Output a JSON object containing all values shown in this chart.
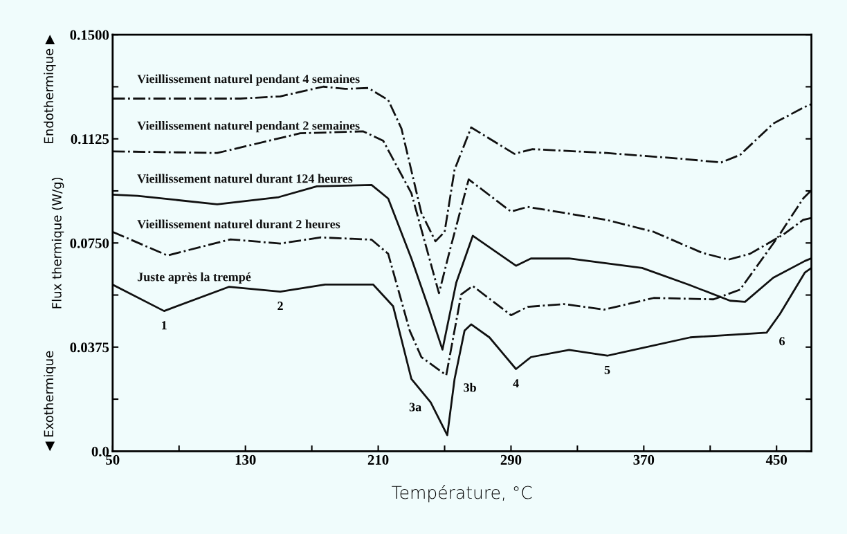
{
  "chart_data": {
    "type": "line",
    "xlabel": "Température, °C",
    "ylabel": "Flux thermique (W/g)",
    "xlim": [
      50,
      471
    ],
    "xticks": [
      50,
      {
        "value": 90,
        "label": null
      },
      130,
      {
        "value": 170,
        "label": null
      },
      210,
      {
        "value": 250,
        "label": null
      },
      290,
      {
        "value": 330,
        "label": null
      },
      370,
      {
        "value": 410,
        "label": null
      },
      450
    ],
    "ylim": [
      0.0,
      0.15
    ],
    "yticks": [
      {
        "value": 0.0,
        "label": "0.0"
      },
      {
        "value": 0.01875,
        "label": null
      },
      {
        "value": 0.0375,
        "label": "0.0375"
      },
      {
        "value": 0.05625,
        "label": null
      },
      {
        "value": 0.075,
        "label": "0.0750"
      },
      {
        "value": 0.09375,
        "label": null
      },
      {
        "value": 0.1125,
        "label": "0.1125"
      },
      {
        "value": 0.13125,
        "label": null
      },
      {
        "value": 0.15,
        "label": "0.1500"
      }
    ],
    "grid": false,
    "legend": false,
    "marker": "none",
    "series": [
      {
        "name": "Vieillissement naturel pendant 4 semaines",
        "color": "#111111",
        "line_style": "dashdot",
        "x": [
          50,
          127,
          151,
          177,
          190,
          204,
          216,
          224,
          236,
          244.5,
          250,
          256,
          266,
          292,
          303,
          347.6,
          391,
          416.6,
          428,
          448,
          467,
          471
        ],
        "values": [
          0.127,
          0.127,
          0.1278,
          0.1313,
          0.1305,
          0.1308,
          0.1265,
          0.1162,
          0.0858,
          0.0756,
          0.079,
          0.1014,
          0.1166,
          0.1071,
          0.1088,
          0.1074,
          0.1054,
          0.104,
          0.1067,
          0.118,
          0.124,
          0.125
        ]
      },
      {
        "name": "Vieillissement naturel pendant 2 semaines",
        "color": "#111111",
        "line_style": "dashdot",
        "x": [
          50,
          113,
          163,
          201,
          213,
          230,
          246.6,
          253,
          264.5,
          290,
          300,
          347.6,
          376,
          405,
          421,
          434,
          454,
          466,
          471
        ],
        "values": [
          0.108,
          0.1074,
          0.1145,
          0.1152,
          0.1118,
          0.0929,
          0.0569,
          0.072,
          0.0979,
          0.0863,
          0.088,
          0.0833,
          0.079,
          0.0715,
          0.069,
          0.0711,
          0.078,
          0.0833,
          0.084
        ]
      },
      {
        "name": "Vieillissement naturel durant 124 heures",
        "color": "#111111",
        "line_style": "solid",
        "x": [
          50,
          65,
          113,
          150,
          173,
          206,
          216,
          230,
          240,
          248.7,
          257,
          267,
          293,
          302,
          325,
          369,
          397,
          422,
          431,
          448,
          467,
          471
        ],
        "values": [
          0.0924,
          0.092,
          0.0889,
          0.0915,
          0.0954,
          0.0959,
          0.091,
          0.0694,
          0.0522,
          0.0366,
          0.0607,
          0.0776,
          0.0668,
          0.0694,
          0.0694,
          0.066,
          0.06,
          0.0542,
          0.0538,
          0.0625,
          0.0685,
          0.0695
        ]
      },
      {
        "name": "Vieillissement naturel durant 2 heures",
        "color": "#111111",
        "line_style": "dashdot",
        "x": [
          50,
          83,
          121,
          151,
          175.5,
          206,
          216,
          229,
          236,
          251,
          260,
          267,
          290,
          300,
          322,
          346,
          376,
          412,
          428,
          451,
          466,
          471
        ],
        "values": [
          0.079,
          0.0705,
          0.0763,
          0.0748,
          0.077,
          0.0762,
          0.0711,
          0.0434,
          0.0339,
          0.0274,
          0.0565,
          0.0595,
          0.049,
          0.052,
          0.053,
          0.051,
          0.0552,
          0.0547,
          0.0582,
          0.0773,
          0.091,
          0.094
        ]
      },
      {
        "name": "Juste après la trempé",
        "color": "#111111",
        "line_style": "solid",
        "x": [
          50,
          81,
          120,
          151,
          178,
          207,
          219,
          230,
          241.6,
          251.6,
          256,
          262,
          266,
          277,
          293,
          302,
          325,
          348,
          398,
          444,
          452,
          467,
          471
        ],
        "values": [
          0.06,
          0.0505,
          0.0592,
          0.0575,
          0.06,
          0.06,
          0.0522,
          0.026,
          0.0176,
          0.0058,
          0.026,
          0.0434,
          0.0457,
          0.041,
          0.0296,
          0.0339,
          0.0365,
          0.0344,
          0.041,
          0.0427,
          0.0494,
          0.0643,
          0.066
        ]
      }
    ],
    "annotations": [
      {
        "text": "1",
        "x": 81,
        "y": 0.0505
      },
      {
        "text": "2",
        "x": 151,
        "y": 0.0575
      },
      {
        "text": "3a",
        "x": 241.6,
        "y": 0.0176
      },
      {
        "text": "3b",
        "x": 256,
        "y": 0.026
      },
      {
        "text": "4",
        "x": 293,
        "y": 0.0296
      },
      {
        "text": "5",
        "x": 348,
        "y": 0.0344
      },
      {
        "text": "6",
        "x": 444,
        "y": 0.0427
      },
      "◀ Exothermique",
      "Endothermique ▶"
    ]
  }
}
